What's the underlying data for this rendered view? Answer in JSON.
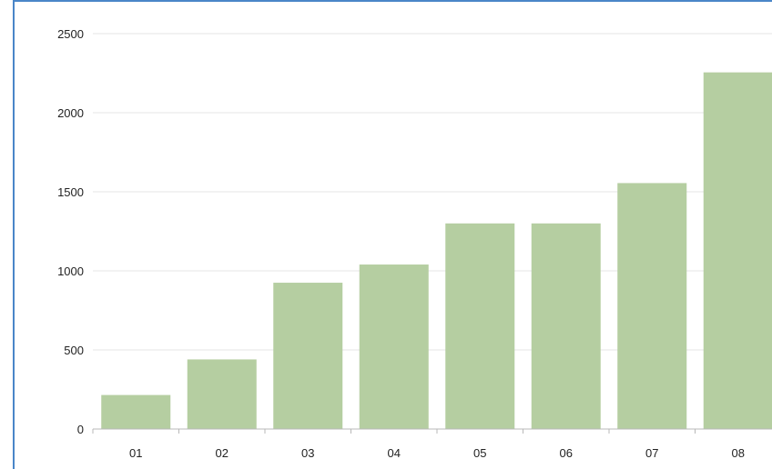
{
  "chart_data": {
    "type": "bar",
    "categories": [
      "01",
      "02",
      "03",
      "04",
      "05",
      "06",
      "07",
      "08"
    ],
    "values": [
      215,
      440,
      925,
      1040,
      1300,
      1300,
      1555,
      2255
    ],
    "title": "",
    "xlabel": "",
    "ylabel": "",
    "ylim": [
      0,
      2500
    ],
    "yticks": [
      "0",
      "500",
      "1000",
      "1500",
      "2000",
      "2500"
    ],
    "grid": true,
    "legend": "none",
    "colors": {
      "bar": "#b5cea1",
      "grid": "#e4e4e4",
      "axis": "#b8b8b8",
      "frame": "#4a86c8"
    }
  }
}
